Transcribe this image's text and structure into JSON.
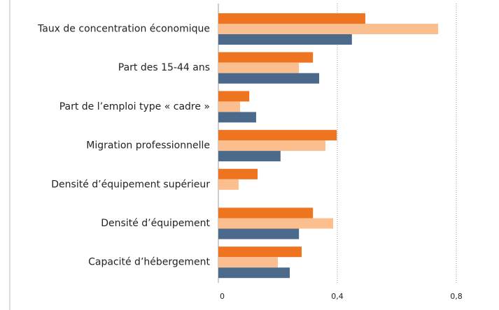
{
  "chart_data": {
    "type": "bar",
    "orientation": "horizontal",
    "categories": [
      "Taux de concentration économique",
      "Part des 15-44 ans",
      "Part de l’emploi type « cadre »",
      "Migration professionnelle",
      "Densité d’équipement supérieur",
      "Densité d’équipement",
      "Capacité d’hébergement"
    ],
    "series": [
      {
        "color": "#ef741f",
        "values": [
          0.494,
          0.318,
          0.104,
          0.398,
          0.132,
          0.318,
          0.28
        ]
      },
      {
        "color": "#fbbe8e",
        "values": [
          0.739,
          0.271,
          0.073,
          0.36,
          0.068,
          0.386,
          0.2
        ]
      },
      {
        "color": "#4b6a8b",
        "values": [
          0.449,
          0.339,
          0.127,
          0.209,
          null,
          0.271,
          0.24
        ]
      }
    ],
    "xlim": [
      0,
      0.9
    ],
    "xticks": [
      0,
      {
        "value": 0.4,
        "label": "0,4"
      },
      {
        "value": 0.8,
        "label": "0,8"
      }
    ],
    "grid": true
  }
}
